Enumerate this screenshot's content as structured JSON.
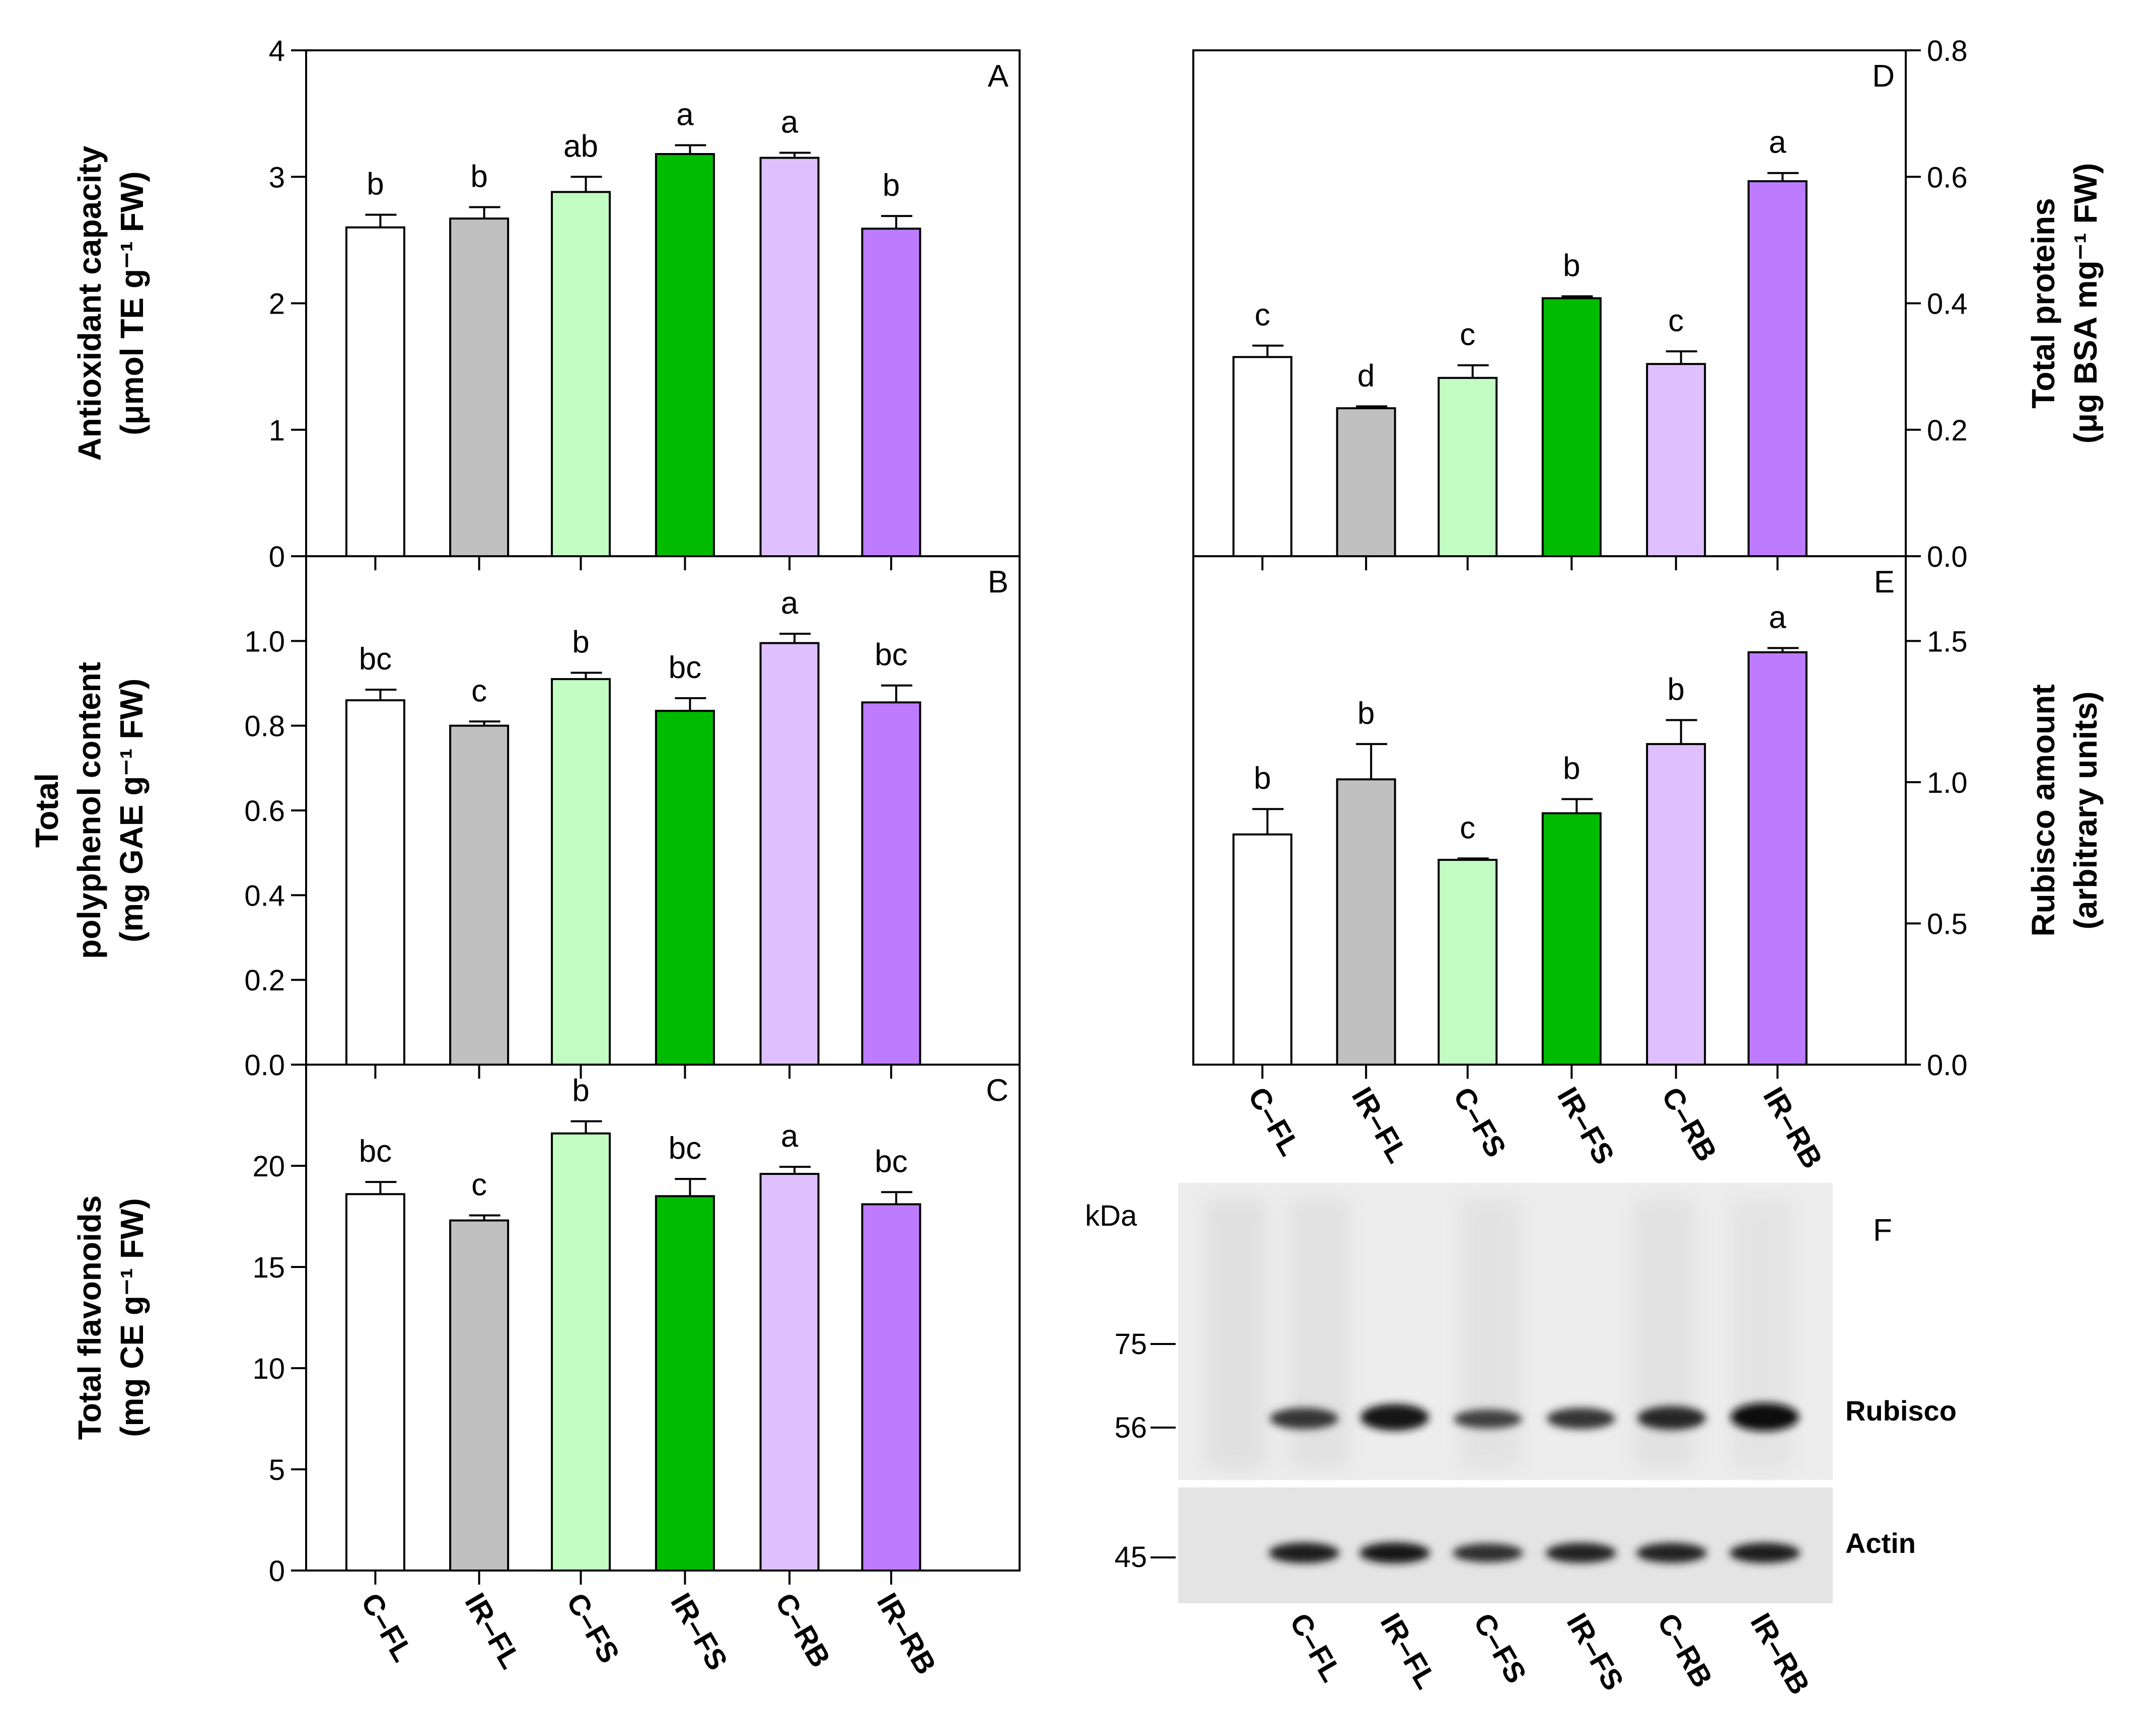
{
  "figure": {
    "blot": {
      "panel_letter": "F",
      "kda_label": "kDa",
      "markers": [
        "75",
        "56",
        "45"
      ],
      "band_labels": [
        "Rubisco",
        "Actin"
      ],
      "lanes": [
        "C–FL",
        "IR–FL",
        "C–FS",
        "IR–FS",
        "C–RB",
        "IR–RB"
      ],
      "rubisco_intensity": [
        0.62,
        0.92,
        0.5,
        0.62,
        0.75,
        1.0
      ],
      "actin_intensity": [
        0.85,
        0.88,
        0.68,
        0.8,
        0.8,
        0.82
      ]
    }
  },
  "chart_data": [
    {
      "id": "A",
      "type": "bar",
      "panel_letter": "A",
      "categories": [
        "C–FL",
        "IR–FL",
        "C–FS",
        "IR–FS",
        "C–RB",
        "IR–RB"
      ],
      "values": [
        2.6,
        2.67,
        2.88,
        3.18,
        3.15,
        2.59
      ],
      "errors": [
        0.1,
        0.09,
        0.12,
        0.07,
        0.04,
        0.1
      ],
      "significance": [
        "b",
        "b",
        "ab",
        "a",
        "a",
        "b"
      ],
      "ylabel": [
        "Antioxidant capacity",
        "(μmol TE g⁻¹ FW)"
      ],
      "ylim": [
        0,
        4
      ],
      "yticks": [
        0,
        1,
        2,
        3,
        4
      ],
      "ytick_labels": [
        "0",
        "1",
        "2",
        "3",
        "4"
      ],
      "colors": [
        "#ffffff",
        "#c0c0c0",
        "#c3fcc3",
        "#00bb00",
        "#dfc0ff",
        "#bd7cff"
      ]
    },
    {
      "id": "B",
      "type": "bar",
      "panel_letter": "B",
      "categories": [
        "C–FL",
        "IR–FL",
        "C–FS",
        "IR–FS",
        "C–RB",
        "IR–RB"
      ],
      "values": [
        0.86,
        0.8,
        0.91,
        0.835,
        0.995,
        0.855
      ],
      "errors": [
        0.025,
        0.01,
        0.015,
        0.03,
        0.022,
        0.04
      ],
      "significance": [
        "bc",
        "c",
        "b",
        "bc",
        "a",
        "bc"
      ],
      "ylabel": [
        "Total",
        "polyphenol content",
        "(mg GAE g⁻¹ FW)"
      ],
      "ylim": [
        0,
        1.2
      ],
      "yticks": [
        0,
        0.2,
        0.4,
        0.6,
        0.8,
        1.0
      ],
      "ytick_labels": [
        "0.0",
        "0.2",
        "0.4",
        "0.6",
        "0.8",
        "1.0"
      ],
      "colors": [
        "#ffffff",
        "#c0c0c0",
        "#c3fcc3",
        "#00bb00",
        "#dfc0ff",
        "#bd7cff"
      ]
    },
    {
      "id": "C",
      "type": "bar",
      "panel_letter": "C",
      "categories": [
        "C–FL",
        "IR–FL",
        "C–FS",
        "IR–FS",
        "C–RB",
        "IR–RB"
      ],
      "values": [
        18.6,
        17.3,
        21.6,
        18.5,
        19.6,
        18.1
      ],
      "errors": [
        0.6,
        0.25,
        0.6,
        0.85,
        0.35,
        0.6
      ],
      "significance": [
        "bc",
        "c",
        "b",
        "bc",
        "a",
        "bc"
      ],
      "ylabel": [
        "Total flavonoids",
        "(mg CE g⁻¹ FW)"
      ],
      "ylim": [
        0,
        25
      ],
      "yticks": [
        0,
        5,
        10,
        15,
        20
      ],
      "ytick_labels": [
        "0",
        "5",
        "10",
        "15",
        "20"
      ],
      "xlabels_visible": true,
      "colors": [
        "#ffffff",
        "#c0c0c0",
        "#c3fcc3",
        "#00bb00",
        "#dfc0ff",
        "#bd7cff"
      ]
    },
    {
      "id": "D",
      "type": "bar",
      "panel_letter": "D",
      "categories": [
        "C–FL",
        "IR–FL",
        "C–FS",
        "IR–FS",
        "C–RB",
        "IR–RB"
      ],
      "values": [
        0.315,
        0.234,
        0.282,
        0.408,
        0.304,
        0.593
      ],
      "errors": [
        0.018,
        0.003,
        0.02,
        0.003,
        0.02,
        0.013
      ],
      "significance": [
        "c",
        "d",
        "c",
        "b",
        "c",
        "a"
      ],
      "ylabel": [
        "Total proteins",
        "(μg BSA mg⁻¹ FW)"
      ],
      "ylim": [
        0,
        0.8
      ],
      "yticks": [
        0,
        0.2,
        0.4,
        0.6,
        0.8
      ],
      "ytick_labels": [
        "0.0",
        "0.2",
        "0.4",
        "0.6",
        "0.8"
      ],
      "yaxis_side": "right",
      "colors": [
        "#ffffff",
        "#c0c0c0",
        "#c3fcc3",
        "#00bb00",
        "#dfc0ff",
        "#bd7cff"
      ]
    },
    {
      "id": "E",
      "type": "bar",
      "panel_letter": "E",
      "categories": [
        "C–FL",
        "IR–FL",
        "C–FS",
        "IR–FS",
        "C–RB",
        "IR–RB"
      ],
      "values": [
        0.815,
        1.01,
        0.725,
        0.89,
        1.135,
        1.46
      ],
      "errors": [
        0.09,
        0.125,
        0.005,
        0.05,
        0.085,
        0.015
      ],
      "significance": [
        "b",
        "b",
        "c",
        "b",
        "b",
        "a"
      ],
      "ylabel": [
        "Rubisco amount",
        "(arbitrary units)"
      ],
      "ylim": [
        0,
        1.8
      ],
      "yticks": [
        0,
        0.5,
        1.0,
        1.5
      ],
      "ytick_labels": [
        "0.0",
        "0.5",
        "1.0",
        "1.5"
      ],
      "yaxis_side": "right",
      "xlabels_visible": true,
      "colors": [
        "#ffffff",
        "#c0c0c0",
        "#c3fcc3",
        "#00bb00",
        "#dfc0ff",
        "#bd7cff"
      ]
    }
  ]
}
